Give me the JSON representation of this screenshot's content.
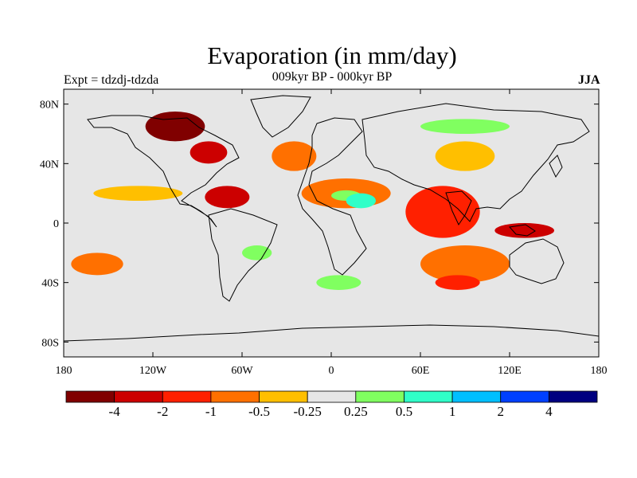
{
  "header": {
    "title": "Evaporation (in mm/day)",
    "experiment": "Expt = tdzdj-tdzda",
    "subtitle": "009kyr BP - 000kyr BP",
    "season": "JJA"
  },
  "map": {
    "projection": "cylindrical-equidistant",
    "lon_range": [
      -180,
      180
    ],
    "lat_range": [
      -90,
      90
    ],
    "background_color": "#e6e6e6",
    "lat_ticks": [
      {
        "lat": 80,
        "label": "80N"
      },
      {
        "lat": 40,
        "label": "40N"
      },
      {
        "lat": 0,
        "label": "0"
      },
      {
        "lat": -40,
        "label": "40S"
      },
      {
        "lat": -80,
        "label": "80S"
      }
    ],
    "lon_ticks": [
      {
        "lon": -180,
        "label": "180"
      },
      {
        "lon": -120,
        "label": "120W"
      },
      {
        "lon": -60,
        "label": "60W"
      },
      {
        "lon": 0,
        "label": "0"
      },
      {
        "lon": 60,
        "label": "60E"
      },
      {
        "lon": 120,
        "label": "120E"
      },
      {
        "lon": 180,
        "label": "180"
      }
    ],
    "anomaly_regions": [
      {
        "name": "north-america-interior",
        "level": "<-4",
        "lon": [
          -125,
          -85
        ],
        "lat": [
          55,
          75
        ]
      },
      {
        "name": "north-america-east",
        "level": "-2",
        "lon": [
          -95,
          -70
        ],
        "lat": [
          40,
          55
        ]
      },
      {
        "name": "north-atlantic",
        "level": "-0.5",
        "lon": [
          -40,
          -10
        ],
        "lat": [
          35,
          55
        ]
      },
      {
        "name": "caribbean",
        "level": "-2",
        "lon": [
          -85,
          -55
        ],
        "lat": [
          10,
          25
        ]
      },
      {
        "name": "north-africa-sahel",
        "level": "-0.5",
        "lon": [
          -20,
          40
        ],
        "lat": [
          10,
          30
        ]
      },
      {
        "name": "sahel-green",
        "level": "0.5",
        "lon": [
          0,
          20
        ],
        "lat": [
          15,
          22
        ]
      },
      {
        "name": "east-africa",
        "level": "1",
        "lon": [
          10,
          30
        ],
        "lat": [
          10,
          20
        ]
      },
      {
        "name": "arabian-sea",
        "level": "-1",
        "lon": [
          50,
          100
        ],
        "lat": [
          -10,
          25
        ]
      },
      {
        "name": "south-indian-ocean",
        "level": "-0.5",
        "lon": [
          60,
          120
        ],
        "lat": [
          -40,
          -15
        ]
      },
      {
        "name": "southern-ocean-indian",
        "level": "-1",
        "lon": [
          70,
          100
        ],
        "lat": [
          -45,
          -35
        ]
      },
      {
        "name": "maritime-continent",
        "level": "-2",
        "lon": [
          110,
          150
        ],
        "lat": [
          -10,
          0
        ]
      },
      {
        "name": "south-pacific",
        "level": "-0.5",
        "lon": [
          -175,
          -140
        ],
        "lat": [
          -35,
          -20
        ]
      },
      {
        "name": "south-atlantic",
        "level": "0.5",
        "lon": [
          -60,
          -40
        ],
        "lat": [
          -25,
          -15
        ]
      },
      {
        "name": "tropical-pacific-north",
        "level": "-0.25",
        "lon": [
          -160,
          -100
        ],
        "lat": [
          15,
          25
        ]
      },
      {
        "name": "siberia",
        "level": "0.5",
        "lon": [
          60,
          120
        ],
        "lat": [
          60,
          70
        ]
      },
      {
        "name": "central-asia",
        "level": "-0.25",
        "lon": [
          70,
          110
        ],
        "lat": [
          35,
          55
        ]
      },
      {
        "name": "southern-atlantic-east",
        "level": "0.5",
        "lon": [
          -10,
          20
        ],
        "lat": [
          -45,
          -35
        ]
      }
    ]
  },
  "colorbar": {
    "colors": [
      "#800000",
      "#cc0000",
      "#ff2000",
      "#ff7000",
      "#ffbf00",
      "#e6e6e6",
      "#80ff60",
      "#30ffc8",
      "#00bfff",
      "#0040ff",
      "#000080"
    ],
    "labels": [
      "-4",
      "-2",
      "-1",
      "-0.5",
      "-0.25",
      "0.25",
      "0.5",
      "1",
      "2",
      "4"
    ]
  }
}
